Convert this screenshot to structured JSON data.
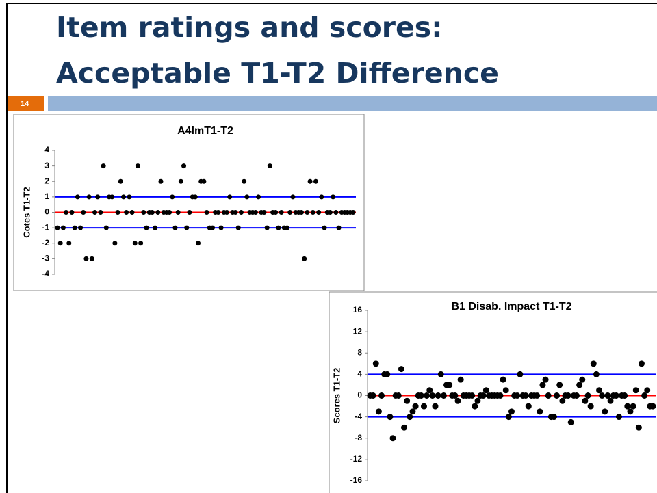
{
  "slide": {
    "title": [
      "Item ratings and scores:",
      "Acceptable T1-T2 Difference"
    ],
    "number": "14"
  },
  "chart_data": [
    {
      "type": "scatter",
      "title": "A4ImT1-T2",
      "y_label": "Cotes T1-T2",
      "color": "#000000",
      "ylim": [
        -4,
        4
      ],
      "yticks": [
        -4,
        -3,
        -2,
        -1,
        0,
        1,
        2,
        3,
        4
      ],
      "ref_lines": [
        {
          "value": 1,
          "color": "#0000ff"
        },
        {
          "value": 0,
          "color": "#ff0000"
        },
        {
          "value": -1,
          "color": "#0000ff"
        }
      ],
      "values": [
        -1,
        -2,
        -1,
        0,
        -2,
        0,
        -1,
        1,
        -1,
        0,
        -3,
        1,
        -3,
        0,
        1,
        0,
        3,
        -1,
        1,
        1,
        -2,
        0,
        2,
        1,
        0,
        1,
        0,
        -2,
        3,
        -2,
        0,
        -1,
        0,
        0,
        -1,
        0,
        2,
        0,
        0,
        0,
        1,
        -1,
        0,
        2,
        3,
        -1,
        0,
        1,
        1,
        -2,
        2,
        2,
        0,
        -1,
        -1,
        0,
        0,
        -1,
        0,
        0,
        1,
        0,
        0,
        -1,
        0,
        2,
        1,
        0,
        0,
        0,
        1,
        0,
        0,
        -1,
        3,
        0,
        0,
        -1,
        0,
        -1,
        -1,
        0,
        1,
        0,
        0,
        0,
        -3,
        0,
        2,
        0,
        2,
        0,
        1,
        -1,
        0,
        0,
        1,
        0,
        -1,
        0,
        0,
        0,
        0,
        0
      ]
    },
    {
      "type": "scatter",
      "title": "B1 Disab. Impact T1-T2",
      "y_label": "Scores  T1-T2",
      "color": "#000000",
      "ylim": [
        -16,
        16
      ],
      "yticks": [
        -16,
        -12,
        -8,
        -4,
        0,
        4,
        8,
        12,
        16
      ],
      "ref_lines": [
        {
          "value": 4,
          "color": "#0000ff"
        },
        {
          "value": 0,
          "color": "#ff0000"
        },
        {
          "value": -4,
          "color": "#0000ff"
        }
      ],
      "values": [
        0,
        0,
        6,
        -3,
        0,
        4,
        4,
        -4,
        -8,
        0,
        0,
        5,
        -6,
        -1,
        -4,
        -3,
        -2,
        0,
        0,
        -2,
        0,
        1,
        0,
        -2,
        0,
        4,
        0,
        2,
        2,
        0,
        0,
        -1,
        3,
        0,
        0,
        0,
        0,
        -2,
        -1,
        0,
        0,
        1,
        0,
        0,
        0,
        0,
        0,
        3,
        1,
        -4,
        -3,
        0,
        0,
        4,
        0,
        0,
        -2,
        0,
        0,
        0,
        -3,
        2,
        3,
        0,
        -4,
        -4,
        0,
        2,
        -1,
        0,
        0,
        -5,
        0,
        0,
        2,
        3,
        -1,
        0,
        -2,
        6,
        4,
        1,
        0,
        -3,
        0,
        -1,
        0,
        0,
        -4,
        0,
        0,
        -2,
        -3,
        -2,
        1,
        -6,
        6,
        0,
        1,
        -2,
        -2
      ]
    }
  ]
}
